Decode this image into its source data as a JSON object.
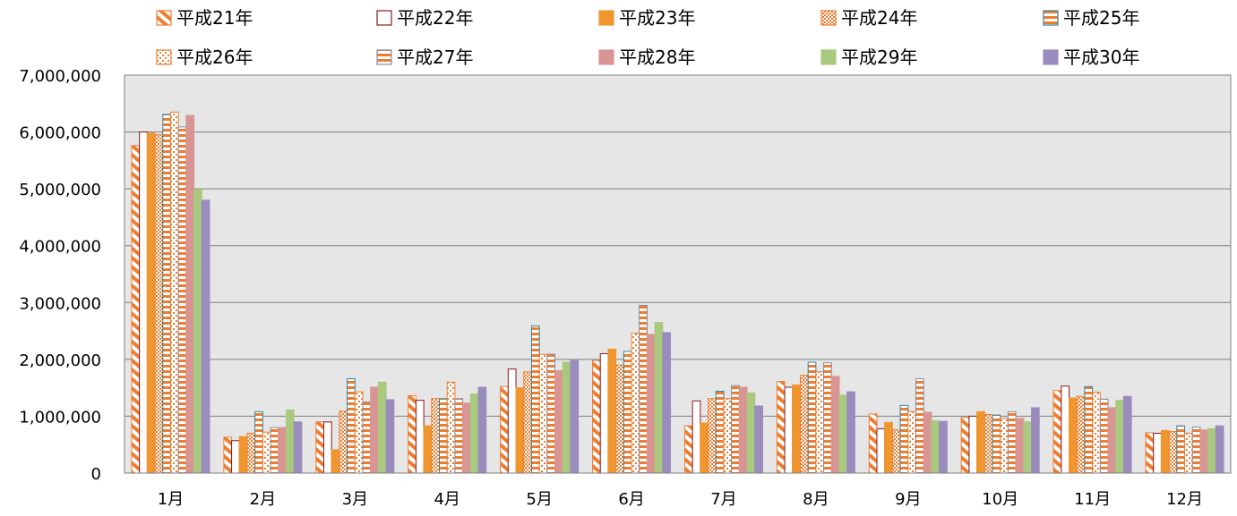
{
  "chart_data": {
    "type": "bar",
    "title": "",
    "xlabel": "",
    "ylabel": "",
    "ylim": [
      0,
      7000000
    ],
    "yticks": [
      0,
      1000000,
      2000000,
      3000000,
      4000000,
      5000000,
      6000000,
      7000000
    ],
    "ytick_labels": [
      "0",
      "1,000,000",
      "2,000,000",
      "3,000,000",
      "4,000,000",
      "5,000,000",
      "6,000,000",
      "7,000,000"
    ],
    "grid": true,
    "legend_position": "top",
    "categories": [
      "1月",
      "2月",
      "3月",
      "4月",
      "5月",
      "6月",
      "7月",
      "8月",
      "9月",
      "10月",
      "11月",
      "12月"
    ],
    "series": [
      {
        "name": "平成21年",
        "pattern": "diagonal",
        "color": "#ED7D31",
        "values": [
          5760000,
          630000,
          900000,
          1360000,
          1520000,
          1980000,
          830000,
          1610000,
          1040000,
          980000,
          1450000,
          710000
        ]
      },
      {
        "name": "平成22年",
        "pattern": "hollow",
        "color": "#8B1A1A",
        "values": [
          6000000,
          570000,
          900000,
          1280000,
          1830000,
          2100000,
          1270000,
          1510000,
          780000,
          1000000,
          1530000,
          700000
        ]
      },
      {
        "name": "平成23年",
        "pattern": "solid",
        "color": "#F0962E",
        "values": [
          5980000,
          640000,
          410000,
          830000,
          1500000,
          2180000,
          880000,
          1550000,
          890000,
          1080000,
          1320000,
          750000
        ]
      },
      {
        "name": "平成24年",
        "pattern": "checker",
        "color": "#ED7D31",
        "values": [
          5950000,
          700000,
          1090000,
          1310000,
          1780000,
          1900000,
          1310000,
          1720000,
          760000,
          1030000,
          1350000,
          730000
        ]
      },
      {
        "name": "平成25年",
        "pattern": "hstripe-blue",
        "color": "#31849B",
        "values": [
          6310000,
          1080000,
          1660000,
          1310000,
          2590000,
          2140000,
          1440000,
          1950000,
          1190000,
          1020000,
          1520000,
          830000
        ]
      },
      {
        "name": "平成26年",
        "pattern": "dots",
        "color": "#ED7D31",
        "values": [
          6350000,
          720000,
          1430000,
          1600000,
          2090000,
          2460000,
          1310000,
          1780000,
          1080000,
          960000,
          1420000,
          700000
        ]
      },
      {
        "name": "平成27年",
        "pattern": "hstripe-gray",
        "color": "#7F8CA8",
        "values": [
          6090000,
          800000,
          1250000,
          1310000,
          2090000,
          2950000,
          1540000,
          1940000,
          1660000,
          1080000,
          1300000,
          810000
        ]
      },
      {
        "name": "平成28年",
        "pattern": "solid",
        "color": "#D99594",
        "values": [
          6290000,
          800000,
          1510000,
          1230000,
          1800000,
          2440000,
          1510000,
          1700000,
          1070000,
          960000,
          1150000,
          760000
        ]
      },
      {
        "name": "平成29年",
        "pattern": "solid",
        "color": "#A9C97F",
        "values": [
          4990000,
          1110000,
          1600000,
          1390000,
          1950000,
          2650000,
          1410000,
          1370000,
          920000,
          900000,
          1280000,
          780000
        ]
      },
      {
        "name": "平成30年",
        "pattern": "solid",
        "color": "#9A8DBE",
        "values": [
          4800000,
          900000,
          1290000,
          1510000,
          1980000,
          2470000,
          1180000,
          1430000,
          910000,
          1150000,
          1350000,
          830000
        ]
      }
    ]
  }
}
